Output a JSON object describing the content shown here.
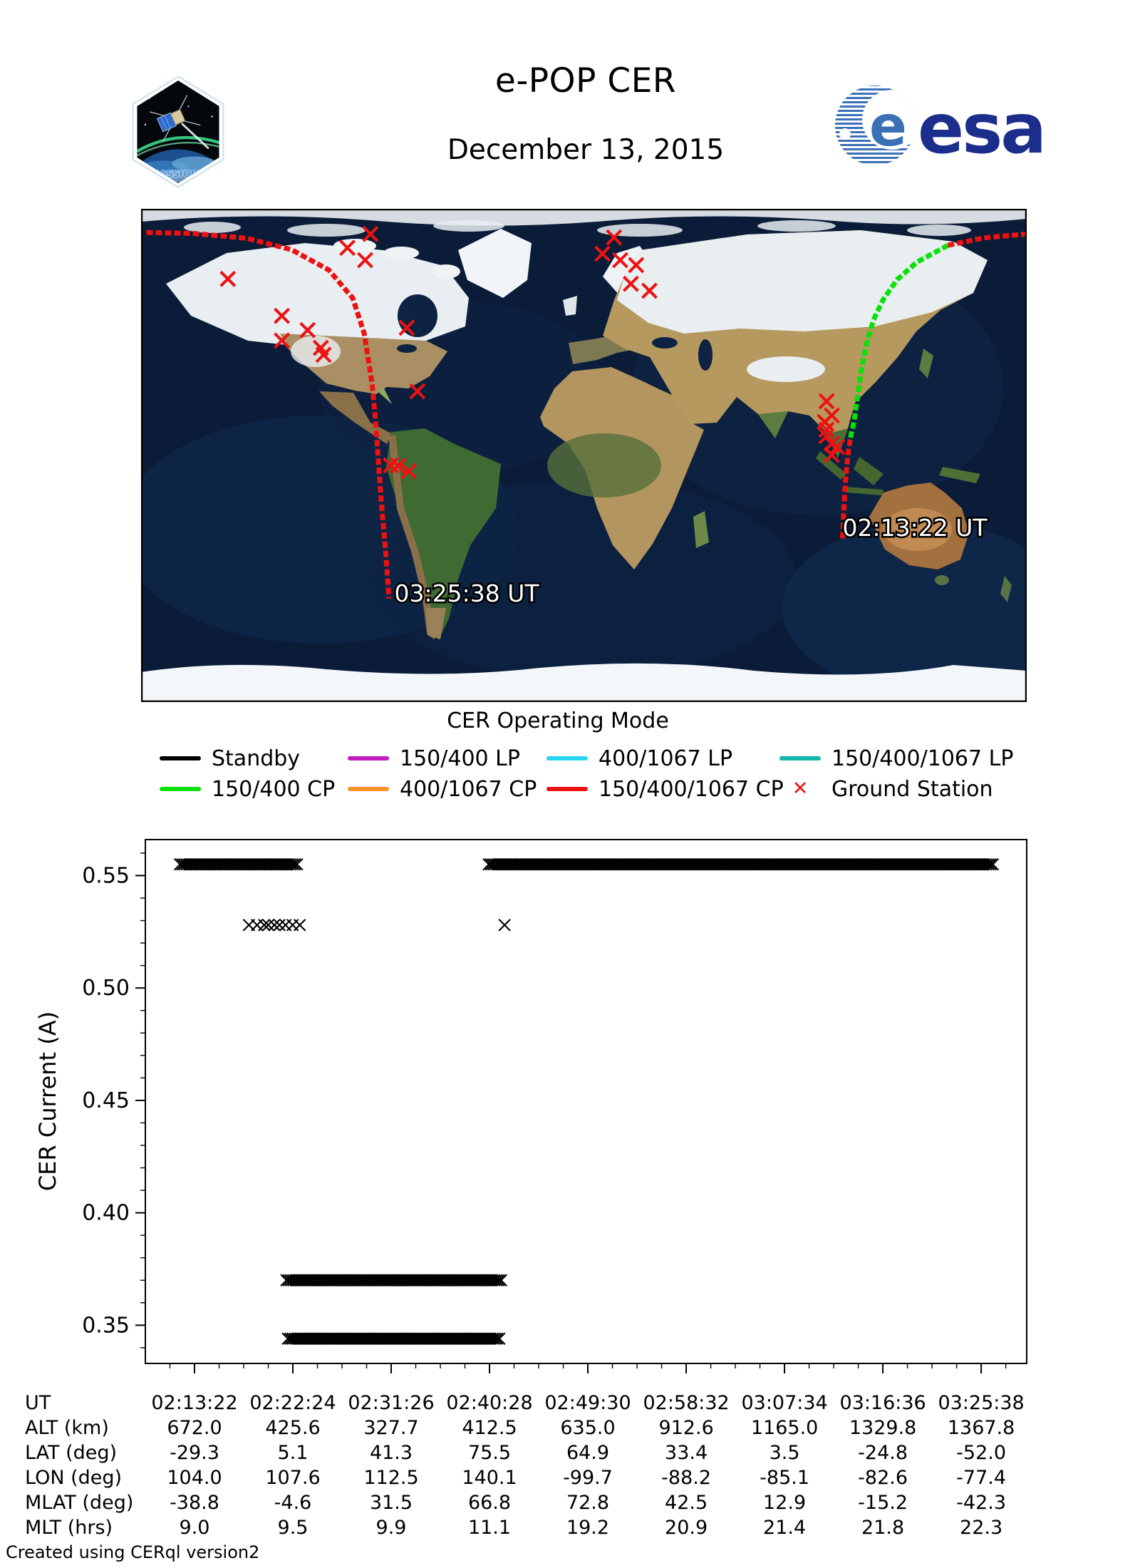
{
  "header": {
    "title": "e-POP CER",
    "date": "December 13, 2015",
    "esa_wordmark": "esa",
    "patch_label": "CASSIOPE"
  },
  "map": {
    "pass_start_label": "02:13:22 UT",
    "pass_end_label": "03:25:38 UT",
    "pass_start_pos": {
      "fx": 0.792,
      "fy": 0.646
    },
    "pass_end_pos": {
      "fx": 0.286,
      "fy": 0.779
    },
    "ground_stations": [
      [
        0.259,
        0.051
      ],
      [
        0.233,
        0.079
      ],
      [
        0.253,
        0.104
      ],
      [
        0.098,
        0.142
      ],
      [
        0.159,
        0.217
      ],
      [
        0.188,
        0.246
      ],
      [
        0.159,
        0.267
      ],
      [
        0.203,
        0.282
      ],
      [
        0.206,
        0.296
      ],
      [
        0.3,
        0.241
      ],
      [
        0.312,
        0.37
      ],
      [
        0.282,
        0.52
      ],
      [
        0.29,
        0.521
      ],
      [
        0.302,
        0.532
      ],
      [
        0.534,
        0.058
      ],
      [
        0.521,
        0.091
      ],
      [
        0.541,
        0.104
      ],
      [
        0.559,
        0.114
      ],
      [
        0.553,
        0.152
      ],
      [
        0.574,
        0.166
      ],
      [
        0.774,
        0.39
      ],
      [
        0.78,
        0.419
      ],
      [
        0.772,
        0.432
      ],
      [
        0.774,
        0.448
      ],
      [
        0.774,
        0.461
      ],
      [
        0.78,
        0.476
      ],
      [
        0.786,
        0.483
      ],
      [
        0.78,
        0.499
      ]
    ],
    "tracks": [
      {
        "mode": "150/400/1067 CP",
        "color": "#ee1111",
        "points": [
          [
            0.006,
            0.048
          ],
          [
            0.06,
            0.05
          ],
          [
            0.12,
            0.06
          ],
          [
            0.17,
            0.083
          ],
          [
            0.212,
            0.124
          ],
          [
            0.239,
            0.181
          ],
          [
            0.252,
            0.253
          ],
          [
            0.261,
            0.357
          ],
          [
            0.265,
            0.435
          ],
          [
            0.268,
            0.512
          ],
          [
            0.271,
            0.59
          ],
          [
            0.276,
            0.692
          ],
          [
            0.28,
            0.79
          ]
        ]
      },
      {
        "mode": "150/400/1067 CP",
        "color": "#ee1111",
        "points": [
          [
            0.792,
            0.668
          ],
          [
            0.795,
            0.559
          ],
          [
            0.798,
            0.501
          ],
          [
            0.801,
            0.464
          ]
        ]
      },
      {
        "mode": "150/400 CP",
        "color": "#0ae00a",
        "points": [
          [
            0.801,
            0.464
          ],
          [
            0.805,
            0.432
          ],
          [
            0.809,
            0.38
          ],
          [
            0.813,
            0.328
          ],
          [
            0.819,
            0.275
          ],
          [
            0.827,
            0.225
          ],
          [
            0.838,
            0.184
          ],
          [
            0.854,
            0.143
          ],
          [
            0.876,
            0.108
          ],
          [
            0.901,
            0.084
          ],
          [
            0.911,
            0.074
          ]
        ]
      },
      {
        "mode": "150/400/1067 CP",
        "color": "#ee1111",
        "points": [
          [
            0.911,
            0.074
          ],
          [
            0.951,
            0.059
          ],
          [
            1.0,
            0.051
          ]
        ]
      }
    ]
  },
  "legend": {
    "title": "CER Operating Mode",
    "entries": [
      {
        "label": "Standby",
        "color": "#000000",
        "type": "line"
      },
      {
        "label": "150/400 LP",
        "color": "#c41bc4",
        "type": "line"
      },
      {
        "label": "400/1067 LP",
        "color": "#26d7f0",
        "type": "line"
      },
      {
        "label": "150/400/1067 LP",
        "color": "#12b5ab",
        "type": "line"
      },
      {
        "label": "150/400 CP",
        "color": "#0ae00a",
        "type": "line"
      },
      {
        "label": "400/1067 CP",
        "color": "#f79228",
        "type": "line"
      },
      {
        "label": "150/400/1067 CP",
        "color": "#ee1111",
        "type": "line"
      },
      {
        "label": "Ground Station",
        "color": "#ee1111",
        "type": "marker"
      }
    ]
  },
  "chart_data": {
    "type": "scatter",
    "marker": "x",
    "marker_color": "#000000",
    "ylabel": "CER Current (A)",
    "ylim": [
      0.333,
      0.566
    ],
    "yticks": [
      0.35,
      0.4,
      0.45,
      0.5,
      0.55
    ],
    "x_domain_seconds": [
      -271,
      4587
    ],
    "xticks_seconds": [
      0,
      542,
      1084,
      1626,
      2168,
      2710,
      3252,
      3794,
      4336
    ],
    "xtick_labels": [
      "02:13:22",
      "02:22:24",
      "02:31:26",
      "02:40:28",
      "02:49:30",
      "02:58:32",
      "03:07:34",
      "03:16:36",
      "03:25:38"
    ],
    "series": [
      {
        "name": "standby-band-1",
        "y": 0.555,
        "t_start": -80,
        "t_end": 565,
        "style": "band"
      },
      {
        "name": "transition-cluster",
        "y": 0.528,
        "t_start": 300,
        "t_end": 580,
        "style": "cluster",
        "count": 9
      },
      {
        "name": "operate-band-high",
        "y": 0.37,
        "t_start": 507,
        "t_end": 1690,
        "style": "band"
      },
      {
        "name": "operate-band-low",
        "y": 0.344,
        "t_start": 515,
        "t_end": 1680,
        "style": "band"
      },
      {
        "name": "transition-point",
        "y": 0.528,
        "t_start": 1709,
        "t_end": 1709,
        "style": "point"
      },
      {
        "name": "standby-band-2",
        "y": 0.555,
        "t_start": 1622,
        "t_end": 4400,
        "style": "band"
      }
    ]
  },
  "table": {
    "rows": [
      {
        "label": "UT",
        "values": [
          "02:13:22",
          "02:22:24",
          "02:31:26",
          "02:40:28",
          "02:49:30",
          "02:58:32",
          "03:07:34",
          "03:16:36",
          "03:25:38"
        ]
      },
      {
        "label": "ALT (km)",
        "values": [
          "672.0",
          "425.6",
          "327.7",
          "412.5",
          "635.0",
          "912.6",
          "1165.0",
          "1329.8",
          "1367.8"
        ]
      },
      {
        "label": "LAT (deg)",
        "values": [
          "-29.3",
          "5.1",
          "41.3",
          "75.5",
          "64.9",
          "33.4",
          "3.5",
          "-24.8",
          "-52.0"
        ]
      },
      {
        "label": "LON (deg)",
        "values": [
          "104.0",
          "107.6",
          "112.5",
          "140.1",
          "-99.7",
          "-88.2",
          "-85.1",
          "-82.6",
          "-77.4"
        ]
      },
      {
        "label": "MLAT (deg)",
        "values": [
          "-38.8",
          "-4.6",
          "31.5",
          "66.8",
          "72.8",
          "42.5",
          "12.9",
          "-15.2",
          "-42.3"
        ]
      },
      {
        "label": "MLT (hrs)",
        "values": [
          "9.0",
          "9.5",
          "9.9",
          "11.1",
          "19.2",
          "20.9",
          "21.4",
          "21.8",
          "22.3"
        ]
      }
    ]
  },
  "footer": "Created using CERql version2"
}
